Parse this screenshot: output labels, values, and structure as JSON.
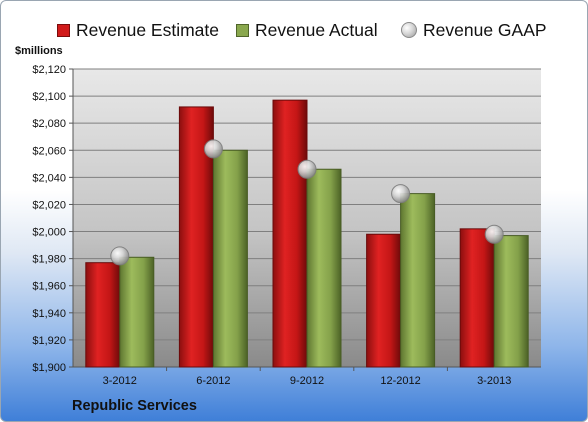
{
  "chart_data": {
    "type": "bar",
    "categories": [
      "3-2012",
      "6-2012",
      "9-2012",
      "12-2012",
      "3-2013"
    ],
    "series": [
      {
        "name": "Revenue Estimate",
        "values": [
          1977,
          2092,
          2097,
          1998,
          2002
        ],
        "color": "#d11a1a"
      },
      {
        "name": "Revenue Actual",
        "values": [
          1981,
          2060,
          2046,
          2028,
          1997
        ],
        "color": "#8aa84e"
      }
    ],
    "points": [
      {
        "name": "Revenue GAAP",
        "values": [
          1982,
          2061,
          2046,
          2028,
          1998
        ],
        "color": "#c8c8c8"
      }
    ],
    "ylabel": "$millions",
    "ylim": [
      1900,
      2120
    ],
    "ytick_step": 20,
    "yticks": [
      "$1,900",
      "$1,920",
      "$1,940",
      "$1,960",
      "$1,980",
      "$2,000",
      "$2,020",
      "$2,040",
      "$2,060",
      "$2,080",
      "$2,100",
      "$2,120"
    ],
    "grid": true,
    "legend_position": "top",
    "footer": "Republic Services"
  }
}
